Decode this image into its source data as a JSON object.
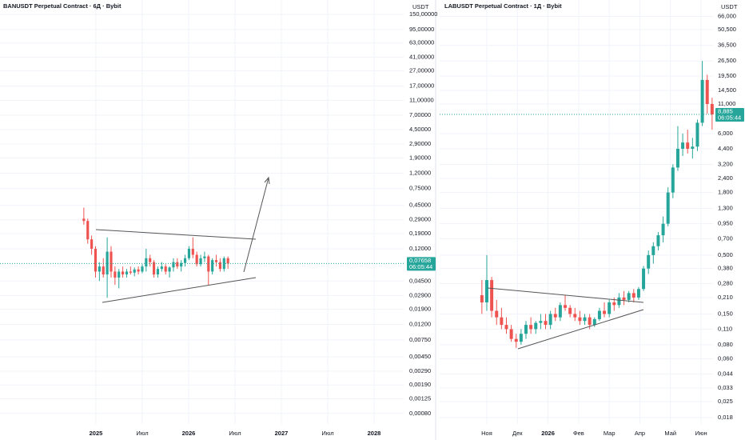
{
  "chart_data": [
    {
      "type": "candlestick",
      "title": "BANUSDT Perpetual Contract · 6Д · Bybit",
      "y_axis_label": "USDT",
      "log_scale": true,
      "grid": true,
      "up_color": "#26a69a",
      "down_color": "#ef5350",
      "x": [
        2024.87,
        2024.912,
        2024.954,
        2024.996,
        2025.038,
        2025.08,
        2025.122,
        2025.164,
        2025.206,
        2025.248,
        2025.29,
        2025.332,
        2025.374,
        2025.416,
        2025.458,
        2025.5,
        2025.542,
        2025.584,
        2025.626,
        2025.668,
        2025.71,
        2025.752,
        2025.794,
        2025.836,
        2025.878,
        2025.92,
        2025.962,
        2026.004,
        2026.046,
        2026.088,
        2026.13,
        2026.172,
        2026.214,
        2026.256,
        2026.298,
        2026.34,
        2026.382,
        2026.424
      ],
      "open": [
        0.3,
        0.28,
        0.16,
        0.12,
        0.06,
        0.07,
        0.055,
        0.11,
        0.06,
        0.05,
        0.06,
        0.055,
        0.06,
        0.058,
        0.064,
        0.06,
        0.07,
        0.09,
        0.08,
        0.055,
        0.065,
        0.07,
        0.06,
        0.068,
        0.08,
        0.07,
        0.078,
        0.09,
        0.12,
        0.1,
        0.075,
        0.09,
        0.095,
        0.06,
        0.085,
        0.08,
        0.065,
        0.09
      ],
      "high": [
        0.42,
        0.3,
        0.18,
        0.13,
        0.08,
        0.09,
        0.17,
        0.13,
        0.07,
        0.065,
        0.07,
        0.065,
        0.07,
        0.068,
        0.07,
        0.075,
        0.12,
        0.1,
        0.085,
        0.07,
        0.08,
        0.075,
        0.07,
        0.09,
        0.09,
        0.085,
        0.1,
        0.13,
        0.17,
        0.11,
        0.1,
        0.11,
        0.1,
        0.09,
        0.1,
        0.09,
        0.095,
        0.095
      ],
      "low": [
        0.25,
        0.14,
        0.1,
        0.05,
        0.045,
        0.05,
        0.027,
        0.05,
        0.04,
        0.036,
        0.05,
        0.05,
        0.055,
        0.052,
        0.055,
        0.057,
        0.06,
        0.07,
        0.05,
        0.05,
        0.06,
        0.055,
        0.05,
        0.06,
        0.065,
        0.06,
        0.07,
        0.085,
        0.09,
        0.07,
        0.07,
        0.08,
        0.04,
        0.055,
        0.07,
        0.06,
        0.06,
        0.065
      ],
      "close": [
        0.28,
        0.16,
        0.12,
        0.06,
        0.07,
        0.055,
        0.11,
        0.06,
        0.05,
        0.06,
        0.055,
        0.06,
        0.058,
        0.064,
        0.06,
        0.07,
        0.09,
        0.08,
        0.055,
        0.065,
        0.07,
        0.06,
        0.068,
        0.08,
        0.07,
        0.078,
        0.09,
        0.12,
        0.1,
        0.075,
        0.09,
        0.095,
        0.06,
        0.085,
        0.08,
        0.065,
        0.09,
        0.07658
      ],
      "xlim": [
        2023.966,
        2028.319
      ],
      "xticks": [
        {
          "value": 2025,
          "label": "2025"
        },
        {
          "value": 2025.5,
          "label": "Июл"
        },
        {
          "value": 2026,
          "label": "2026"
        },
        {
          "value": 2026.5,
          "label": "Июл"
        },
        {
          "value": 2027,
          "label": "2027"
        },
        {
          "value": 2027.5,
          "label": "Июл"
        },
        {
          "value": 2028,
          "label": "2028"
        }
      ],
      "ylim": [
        0.00058,
        233
      ],
      "yticks": [
        {
          "value": 150,
          "label": "150,00000"
        },
        {
          "value": 95,
          "label": "95,00000"
        },
        {
          "value": 63,
          "label": "63,00000"
        },
        {
          "value": 41,
          "label": "41,00000"
        },
        {
          "value": 27,
          "label": "27,00000"
        },
        {
          "value": 17,
          "label": "17,00000"
        },
        {
          "value": 11,
          "label": "11,00000"
        },
        {
          "value": 7,
          "label": "7,00000"
        },
        {
          "value": 4.5,
          "label": "4,50000"
        },
        {
          "value": 2.9,
          "label": "2,90000"
        },
        {
          "value": 1.9,
          "label": "1,90000"
        },
        {
          "value": 1.2,
          "label": "1,20000"
        },
        {
          "value": 0.75,
          "label": "0,75000"
        },
        {
          "value": 0.45,
          "label": "0,45000"
        },
        {
          "value": 0.29,
          "label": "0,29000"
        },
        {
          "value": 0.19,
          "label": "0,19000"
        },
        {
          "value": 0.12,
          "label": "0,12000"
        },
        {
          "value": 0.045,
          "label": "0,04500"
        },
        {
          "value": 0.029,
          "label": "0,02900"
        },
        {
          "value": 0.019,
          "label": "0,01900"
        },
        {
          "value": 0.012,
          "label": "0,01200"
        },
        {
          "value": 0.0075,
          "label": "0,00750"
        },
        {
          "value": 0.0045,
          "label": "0,00450"
        },
        {
          "value": 0.0029,
          "label": "0,00290"
        },
        {
          "value": 0.0019,
          "label": "0,00190"
        },
        {
          "value": 0.00125,
          "label": "0,00125"
        },
        {
          "value": 0.0008,
          "label": "0,00080"
        }
      ],
      "last_price": {
        "value": 0.07658,
        "label": "0,07658"
      },
      "countdown": "06:05:44"
    },
    {
      "type": "candlestick",
      "title": "LABUSDT Perpetual Contract · 1Д · Bybit",
      "y_axis_label": "USDT",
      "log_scale": true,
      "grid": true,
      "up_color": "#26a69a",
      "down_color": "#ef5350",
      "x": [
        9.84,
        10.0,
        10.16,
        10.32,
        10.48,
        10.64,
        10.8,
        10.96,
        11.12,
        11.28,
        11.44,
        11.6,
        11.76,
        11.92,
        12.08,
        12.24,
        12.4,
        12.56,
        12.72,
        12.88,
        13.04,
        13.2,
        13.36,
        13.52,
        13.68,
        13.84,
        14.0,
        14.16,
        14.32,
        14.48,
        14.64,
        14.8,
        14.96,
        15.12,
        15.28,
        15.44,
        15.6,
        15.76,
        15.92,
        16.08,
        16.24,
        16.4,
        16.56,
        16.72,
        16.88,
        17.04,
        17.2,
        17.36
      ],
      "open": [
        0.22,
        0.19,
        0.3,
        0.16,
        0.14,
        0.12,
        0.11,
        0.09,
        0.085,
        0.1,
        0.12,
        0.11,
        0.125,
        0.13,
        0.12,
        0.15,
        0.14,
        0.18,
        0.17,
        0.15,
        0.14,
        0.13,
        0.14,
        0.12,
        0.135,
        0.16,
        0.15,
        0.19,
        0.18,
        0.21,
        0.2,
        0.23,
        0.21,
        0.25,
        0.38,
        0.5,
        0.6,
        0.75,
        0.95,
        1.8,
        3.0,
        4.4,
        5.0,
        4.4,
        4.6,
        7.5,
        18.0,
        11.0
      ],
      "high": [
        0.3,
        0.5,
        0.32,
        0.2,
        0.17,
        0.14,
        0.12,
        0.1,
        0.11,
        0.13,
        0.14,
        0.13,
        0.15,
        0.15,
        0.16,
        0.17,
        0.19,
        0.22,
        0.18,
        0.17,
        0.16,
        0.15,
        0.15,
        0.14,
        0.17,
        0.19,
        0.2,
        0.21,
        0.23,
        0.24,
        0.24,
        0.25,
        0.26,
        0.4,
        0.55,
        0.65,
        0.8,
        1.1,
        2.0,
        3.2,
        7.0,
        6.0,
        6.5,
        5.5,
        8.0,
        26.5,
        20.0,
        12.5
      ],
      "low": [
        0.15,
        0.16,
        0.14,
        0.12,
        0.11,
        0.1,
        0.085,
        0.075,
        0.08,
        0.09,
        0.1,
        0.1,
        0.11,
        0.11,
        0.11,
        0.13,
        0.13,
        0.16,
        0.14,
        0.13,
        0.12,
        0.12,
        0.11,
        0.115,
        0.13,
        0.14,
        0.14,
        0.16,
        0.17,
        0.18,
        0.19,
        0.19,
        0.2,
        0.24,
        0.34,
        0.42,
        0.55,
        0.65,
        0.9,
        1.6,
        2.8,
        3.8,
        4.0,
        3.6,
        4.2,
        7.0,
        9.0,
        6.5
      ],
      "close": [
        0.19,
        0.3,
        0.16,
        0.14,
        0.12,
        0.11,
        0.09,
        0.085,
        0.1,
        0.12,
        0.11,
        0.125,
        0.13,
        0.12,
        0.15,
        0.14,
        0.18,
        0.17,
        0.15,
        0.14,
        0.13,
        0.14,
        0.12,
        0.135,
        0.16,
        0.15,
        0.19,
        0.18,
        0.21,
        0.2,
        0.23,
        0.21,
        0.25,
        0.38,
        0.5,
        0.6,
        0.75,
        0.95,
        1.8,
        3.0,
        4.4,
        5.0,
        4.4,
        4.6,
        7.5,
        18.0,
        11.0,
        8.885
      ],
      "xlim": [
        8.46,
        17.39
      ],
      "xticks": [
        {
          "value": 10,
          "label": "Ноя"
        },
        {
          "value": 11,
          "label": "Дек"
        },
        {
          "value": 12,
          "label": "2026"
        },
        {
          "value": 13,
          "label": "Фев"
        },
        {
          "value": 14,
          "label": "Мар"
        },
        {
          "value": 15,
          "label": "Апр"
        },
        {
          "value": 16,
          "label": "Май"
        },
        {
          "value": 17,
          "label": "Июн"
        }
      ],
      "ylim": [
        0.0158,
        92.3
      ],
      "yticks": [
        {
          "value": 66,
          "label": "66,000"
        },
        {
          "value": 50.5,
          "label": "50,500"
        },
        {
          "value": 36.5,
          "label": "36,500"
        },
        {
          "value": 26.5,
          "label": "26,500"
        },
        {
          "value": 19.5,
          "label": "19,500"
        },
        {
          "value": 14.5,
          "label": "14,500"
        },
        {
          "value": 11,
          "label": "11,000"
        },
        {
          "value": 6,
          "label": "6,000"
        },
        {
          "value": 4.4,
          "label": "4,400"
        },
        {
          "value": 3.2,
          "label": "3,200"
        },
        {
          "value": 2.4,
          "label": "2,400"
        },
        {
          "value": 1.8,
          "label": "1,800"
        },
        {
          "value": 1.3,
          "label": "1,300"
        },
        {
          "value": 0.95,
          "label": "0,950"
        },
        {
          "value": 0.7,
          "label": "0,700"
        },
        {
          "value": 0.5,
          "label": "0,500"
        },
        {
          "value": 0.38,
          "label": "0,380"
        },
        {
          "value": 0.28,
          "label": "0,280"
        },
        {
          "value": 0.21,
          "label": "0,210"
        },
        {
          "value": 0.15,
          "label": "0,150"
        },
        {
          "value": 0.11,
          "label": "0,110"
        },
        {
          "value": 0.08,
          "label": "0,080"
        },
        {
          "value": 0.06,
          "label": "0,060"
        },
        {
          "value": 0.044,
          "label": "0,044"
        },
        {
          "value": 0.033,
          "label": "0,033"
        },
        {
          "value": 0.025,
          "label": "0,025"
        },
        {
          "value": 0.018,
          "label": "0,018"
        }
      ],
      "last_price": {
        "value": 8.885,
        "label": "8,885"
      },
      "countdown": "06:05:44"
    }
  ]
}
